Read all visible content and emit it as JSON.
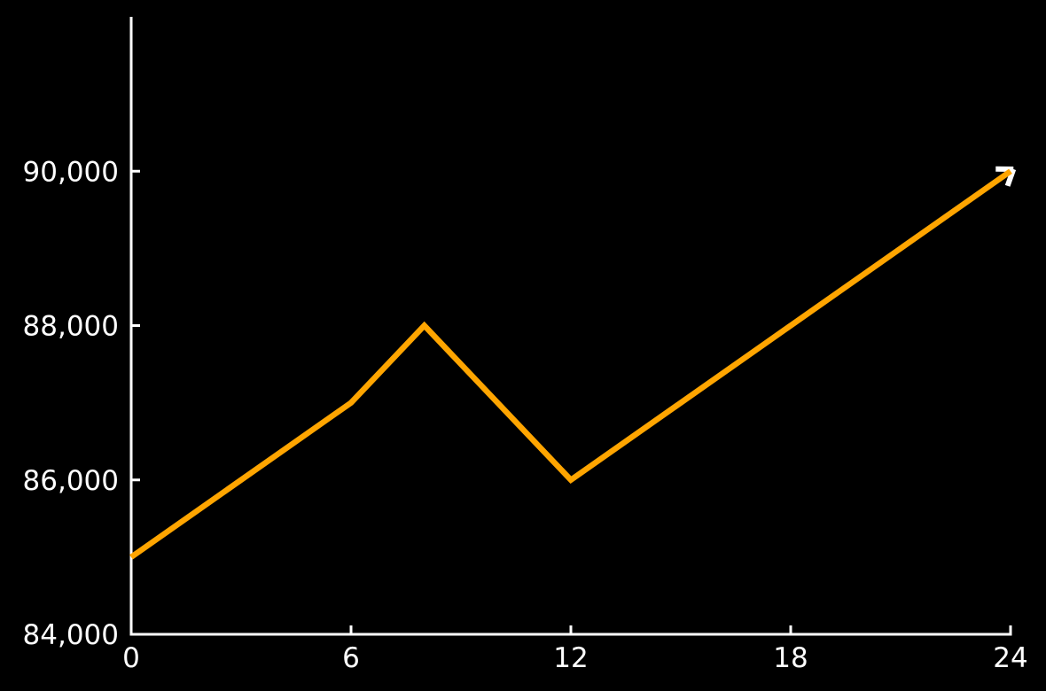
{
  "chart_data": {
    "type": "line",
    "title": "",
    "xlabel": "",
    "ylabel": "",
    "x": [
      0,
      6,
      8,
      12,
      24
    ],
    "y": [
      85000,
      87000,
      88000,
      86000,
      90000
    ],
    "xlim": [
      0,
      24
    ],
    "ylim": [
      84000,
      92000
    ],
    "xticks": [
      0,
      6,
      12,
      18,
      24
    ],
    "xtick_labels": [
      "0",
      "6",
      "12",
      "18",
      "24"
    ],
    "yticks": [
      84000,
      86000,
      88000,
      90000
    ],
    "ytick_labels": [
      "84,000",
      "86,000",
      "88,000",
      "90,000"
    ],
    "grid": false,
    "legend": false,
    "line_color": "#FFA500",
    "line_width": 6.5,
    "end_marker": "chevron-arrowhead",
    "end_marker_color": "#FFFFFF",
    "background_color": "#000000",
    "axis_color": "#FFFFFF",
    "tick_label_color": "#FFFFFF",
    "tick_font_size": 31
  }
}
